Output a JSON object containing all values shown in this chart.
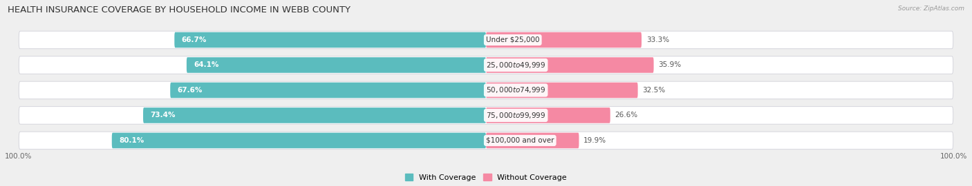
{
  "title": "HEALTH INSURANCE COVERAGE BY HOUSEHOLD INCOME IN WEBB COUNTY",
  "source": "Source: ZipAtlas.com",
  "categories": [
    "Under $25,000",
    "$25,000 to $49,999",
    "$50,000 to $74,999",
    "$75,000 to $99,999",
    "$100,000 and over"
  ],
  "with_coverage": [
    66.7,
    64.1,
    67.6,
    73.4,
    80.1
  ],
  "without_coverage": [
    33.3,
    35.9,
    32.5,
    26.6,
    19.9
  ],
  "color_with": "#5bbcbe",
  "color_without": "#f589a3",
  "color_without_light": "#f9bdd0",
  "bg_color": "#efefef",
  "title_fontsize": 9.5,
  "label_fontsize": 7.5,
  "pct_fontsize": 7.5,
  "legend_fontsize": 8,
  "bar_height": 0.62,
  "axis_label_left": "100.0%",
  "axis_label_right": "100.0%"
}
